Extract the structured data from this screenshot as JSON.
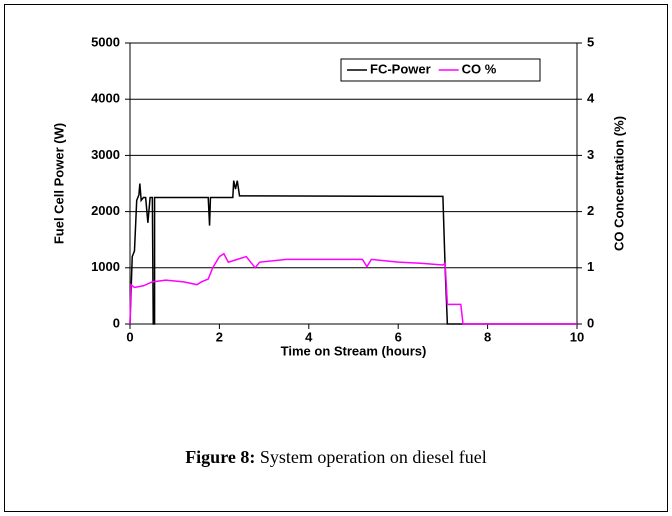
{
  "chart_data": {
    "type": "line",
    "xlabel": "Time on Stream (hours)",
    "ylabel": "Fuel Cell Power (W)",
    "y2label": "CO Concentration (%)",
    "xlim": [
      0,
      10
    ],
    "xticks": [
      0,
      2,
      4,
      6,
      8,
      10
    ],
    "ylim": [
      0,
      5000
    ],
    "yticks": [
      0,
      1000,
      2000,
      3000,
      4000,
      5000
    ],
    "y2lim": [
      0,
      5
    ],
    "y2ticks": [
      0,
      1,
      2,
      3,
      4,
      5
    ],
    "grid": true,
    "legend": "upper right",
    "series": [
      {
        "name": "FC-Power",
        "color": "#000000",
        "x": [
          0,
          0.05,
          0.1,
          0.15,
          0.2,
          0.22,
          0.25,
          0.3,
          0.35,
          0.4,
          0.45,
          0.5,
          0.52,
          0.55,
          0.55,
          1.75,
          1.78,
          1.8,
          2.3,
          2.32,
          2.36,
          2.4,
          2.45,
          7.0,
          7.05,
          7.1,
          10
        ],
        "values": [
          0,
          1200,
          1300,
          2200,
          2300,
          2500,
          2200,
          2250,
          2250,
          1800,
          2250,
          2250,
          0,
          0,
          2250,
          2250,
          1750,
          2250,
          2250,
          2550,
          2400,
          2550,
          2280,
          2270,
          1000,
          0,
          0
        ]
      },
      {
        "name": "CO %",
        "color": "#ff00ff",
        "axis": "y2",
        "x": [
          0,
          0.02,
          0.1,
          0.3,
          0.5,
          0.8,
          1.2,
          1.5,
          1.6,
          1.75,
          1.85,
          2.0,
          2.1,
          2.2,
          2.4,
          2.6,
          2.7,
          2.8,
          2.9,
          3.5,
          4.5,
          5.2,
          5.3,
          5.4,
          6.0,
          6.5,
          7.0,
          7.05,
          7.1,
          7.4,
          7.45,
          10
        ],
        "values": [
          0,
          0.7,
          0.65,
          0.68,
          0.75,
          0.78,
          0.75,
          0.7,
          0.75,
          0.8,
          1.0,
          1.2,
          1.25,
          1.1,
          1.15,
          1.2,
          1.1,
          1.0,
          1.1,
          1.15,
          1.15,
          1.15,
          1.02,
          1.15,
          1.1,
          1.08,
          1.05,
          1.08,
          0.35,
          0.35,
          0,
          0
        ]
      }
    ]
  },
  "caption": {
    "label": "Figure 8:",
    "text": " System operation on diesel fuel"
  }
}
